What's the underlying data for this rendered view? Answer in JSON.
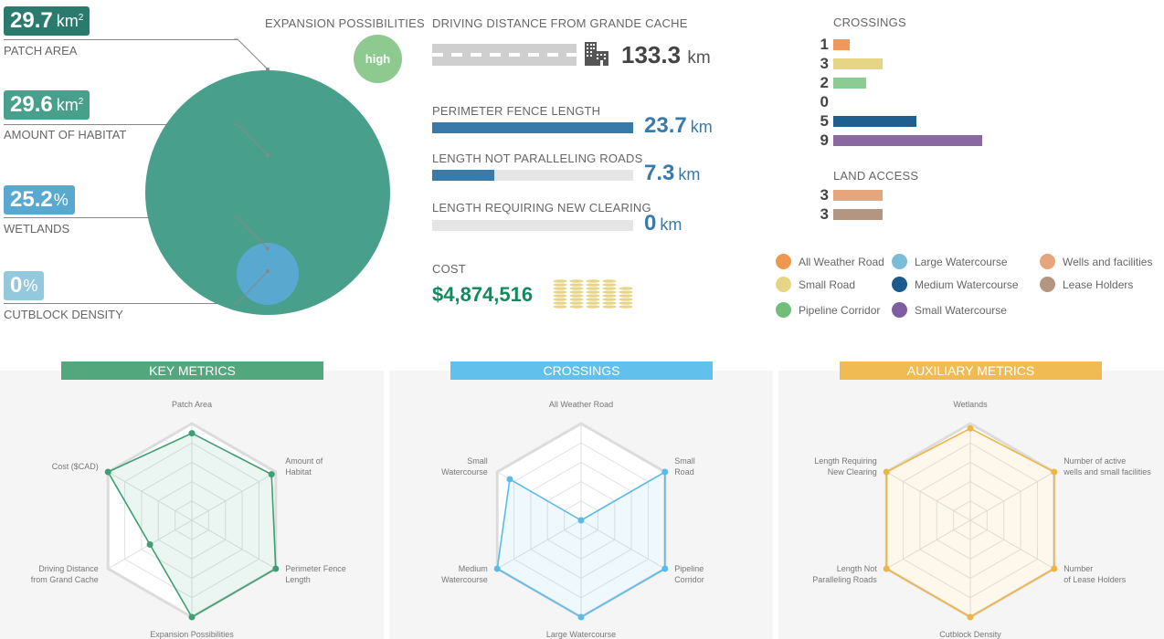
{
  "summary": {
    "patch_area": {
      "value": "29.7",
      "unit": "km",
      "sup": "2",
      "label": "PATCH AREA",
      "color": "#2a7b6e"
    },
    "habitat": {
      "value": "29.6",
      "unit": "km",
      "sup": "2",
      "label": "AMOUNT OF HABITAT",
      "color": "#48a08c"
    },
    "wetlands": {
      "value": "25.2",
      "unit": "%",
      "label": "WETLANDS",
      "color": "#58a8d0"
    },
    "cutblock": {
      "value": "0",
      "unit": "%",
      "label": "CUTBLOCK DENSITY",
      "color": "#94c8dc"
    },
    "circle_colors": {
      "habitat": "#48a08c",
      "wetlands": "#58a8d0"
    }
  },
  "expansion": {
    "label": "EXPANSION POSSIBILITIES",
    "value": "high",
    "color": "#8ec98f"
  },
  "distance": {
    "label": "DRIVING DISTANCE FROM GRANDE CACHE",
    "value": "133.3",
    "unit": "km",
    "icon": "building-icon"
  },
  "fence": {
    "perimeter": {
      "label": "PERIMETER FENCE LENGTH",
      "value": "23.7",
      "unit": "km",
      "fraction": 1.0
    },
    "not_paralleling": {
      "label": "LENGTH NOT PARALLELING ROADS",
      "value": "7.3",
      "unit": "km",
      "fraction": 0.308
    },
    "new_clearing": {
      "label": "LENGTH REQUIRING NEW CLEARING",
      "value": "0",
      "unit": "km",
      "fraction": 0
    }
  },
  "cost": {
    "label": "COST",
    "value": "$4,874,516",
    "icon": "coin-stacks-icon"
  },
  "crossings": {
    "title": "CROSSINGS",
    "max": 9,
    "items": [
      {
        "count": "1",
        "value": 1,
        "color": "#f0975a",
        "name": "All Weather Road"
      },
      {
        "count": "3",
        "value": 3,
        "color": "#e5d585",
        "name": "Small Road"
      },
      {
        "count": "2",
        "value": 2,
        "color": "#8ccc93",
        "name": "Pipeline Corridor"
      },
      {
        "count": "0",
        "value": 0,
        "color": "#7bbcd8",
        "name": "Large Watercourse"
      },
      {
        "count": "5",
        "value": 5,
        "color": "#1f5f8f",
        "name": "Medium Watercourse"
      },
      {
        "count": "9",
        "value": 9,
        "color": "#8a68a0",
        "name": "Small Watercourse"
      }
    ]
  },
  "land_access": {
    "title": "LAND ACCESS",
    "items": [
      {
        "count": "3",
        "value": 3,
        "color": "#e5a67c",
        "name": "Wells and facilities"
      },
      {
        "count": "3",
        "value": 3,
        "color": "#b39582",
        "name": "Lease Holders"
      }
    ]
  },
  "legend": [
    {
      "label": "All Weather Road",
      "color": "#f0974e"
    },
    {
      "label": "Small Road",
      "color": "#e5d585"
    },
    {
      "label": "Pipeline Corridor",
      "color": "#6fbf7a"
    },
    {
      "label": "Large Watercourse",
      "color": "#7bbcd8"
    },
    {
      "label": "Medium Watercourse",
      "color": "#1a5a8c"
    },
    {
      "label": "Small Watercourse",
      "color": "#7e5ea0"
    },
    {
      "label": "Wells and facilities",
      "color": "#e5a67c"
    },
    {
      "label": "Lease Holders",
      "color": "#b39582"
    }
  ],
  "chart_data": [
    {
      "type": "radar",
      "title": "KEY METRICS",
      "color": "#3f9e72",
      "header_color": "#52a87c",
      "axes": [
        "Patch Area",
        "Amount of Habitat",
        "Perimeter Fence Length",
        "Expansion Possibilities",
        "Driving Distance from Grand Cache",
        "Cost ($CAD)"
      ],
      "axis_label_lines": [
        [
          "Patch Area"
        ],
        [
          "Amount of",
          "Habitat"
        ],
        [
          "Perimeter Fence",
          "Length"
        ],
        [
          "Expansion Possibilities"
        ],
        [
          "Driving Distance",
          "from Grand Cache"
        ],
        [
          "Cost ($CAD)"
        ]
      ],
      "values": [
        0.9,
        0.95,
        1.0,
        1.0,
        0.5,
        1.0
      ],
      "range": [
        0,
        1
      ],
      "grid_levels": 5
    },
    {
      "type": "radar",
      "title": "CROSSINGS",
      "color": "#5bbbe8",
      "header_color": "#62c1ec",
      "axes": [
        "All Weather Road",
        "Small Road",
        "Pipeline Corridor",
        "Large Watercourse",
        "Medium Watercourse",
        "Small Watercourse"
      ],
      "axis_label_lines": [
        [
          "All Weather Road"
        ],
        [
          "Small",
          "Road"
        ],
        [
          "Pipeline",
          "Corridor"
        ],
        [
          "Large Watercourse"
        ],
        [
          "Medium",
          "Watercourse"
        ],
        [
          "Small",
          "Watercourse"
        ]
      ],
      "values": [
        0.0,
        1.0,
        1.0,
        1.0,
        1.0,
        0.85
      ],
      "range": [
        0,
        1
      ],
      "grid_levels": 5
    },
    {
      "type": "radar",
      "title": "AUXILIARY METRICS",
      "color": "#f0b446",
      "header_color": "#f0bb52",
      "axes": [
        "Wetlands",
        "Number of active wells and small facilities",
        "Number of Lease Holders",
        "Cutblock Density",
        "Length Not Paralleling Roads",
        "Length Requiring New Clearing"
      ],
      "axis_label_lines": [
        [
          "Wetlands"
        ],
        [
          "Number of active",
          "wells and small facilities"
        ],
        [
          "Number",
          "of Lease Holders"
        ],
        [
          "Cutblock Density"
        ],
        [
          "Length Not",
          "Paralleling Roads"
        ],
        [
          "Length Requiring",
          "New Clearing"
        ]
      ],
      "values": [
        0.95,
        1.0,
        1.0,
        1.0,
        1.0,
        1.0
      ],
      "range": [
        0,
        1
      ],
      "grid_levels": 5
    }
  ]
}
